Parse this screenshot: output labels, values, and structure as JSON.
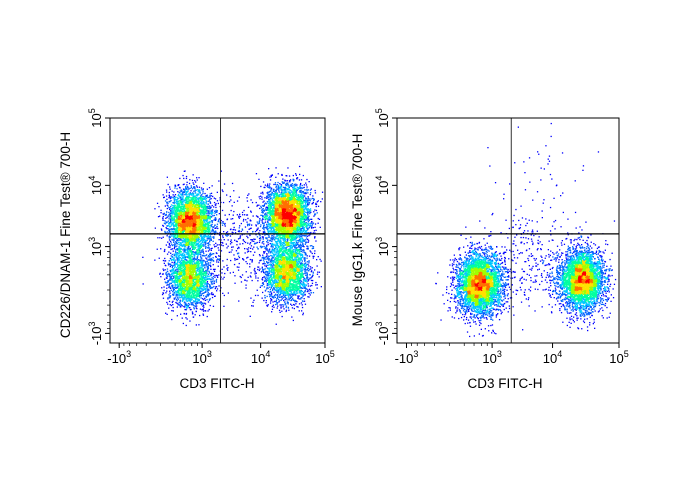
{
  "chart_data": [
    {
      "type": "scatter",
      "subtype": "flow-cytometry-density",
      "title": "",
      "xlabel": "CD3 FITC-H",
      "ylabel": "CD226/DNAM-1 Fine Test® 700-H",
      "x_scale": "biexponential",
      "y_scale": "biexponential",
      "xlim": [
        -1500,
        100000
      ],
      "ylim": [
        -1500,
        100000
      ],
      "x_ticks": [
        {
          "base": "-10",
          "exp": "3",
          "value": -1000
        },
        {
          "base": "10",
          "exp": "3",
          "value": 1000
        },
        {
          "base": "10",
          "exp": "4",
          "value": 10000
        },
        {
          "base": "10",
          "exp": "5",
          "value": 100000
        }
      ],
      "y_ticks": [
        {
          "base": "-10",
          "exp": "3",
          "value": -1000
        },
        {
          "base": "10",
          "exp": "3",
          "value": 1000
        },
        {
          "base": "10",
          "exp": "4",
          "value": 10000
        },
        {
          "base": "10",
          "exp": "5",
          "value": 100000
        }
      ],
      "quadrant_gate": {
        "x": 2200,
        "y": 1700
      },
      "populations": [
        {
          "x": 550,
          "y": 2800,
          "n": 3500
        },
        {
          "x": 550,
          "y": 150,
          "n": 2300
        },
        {
          "x": 26000,
          "y": 3500,
          "n": 3800
        },
        {
          "x": 26000,
          "y": 250,
          "n": 2600
        },
        {
          "x": 5000,
          "y": 1200,
          "n": 450
        }
      ],
      "grid": false,
      "legend": "none"
    },
    {
      "type": "scatter",
      "subtype": "flow-cytometry-density",
      "title": "",
      "xlabel": "CD3 FITC-H",
      "ylabel": "Mouse IgG1,k Fine Test® 700-H",
      "x_scale": "biexponential",
      "y_scale": "biexponential",
      "xlim": [
        -1500,
        100000
      ],
      "ylim": [
        -1500,
        100000
      ],
      "x_ticks": [
        {
          "base": "-10",
          "exp": "3",
          "value": -1000
        },
        {
          "base": "10",
          "exp": "3",
          "value": 1000
        },
        {
          "base": "10",
          "exp": "4",
          "value": 10000
        },
        {
          "base": "10",
          "exp": "5",
          "value": 100000
        }
      ],
      "y_ticks": [
        {
          "base": "-10",
          "exp": "3",
          "value": -1000
        },
        {
          "base": "10",
          "exp": "3",
          "value": 1000
        },
        {
          "base": "10",
          "exp": "4",
          "value": 10000
        },
        {
          "base": "10",
          "exp": "5",
          "value": 100000
        }
      ],
      "quadrant_gate": {
        "x": 2200,
        "y": 1700
      },
      "populations": [
        {
          "x": 550,
          "y": 60,
          "n": 4000
        },
        {
          "x": 28000,
          "y": 120,
          "n": 3800
        },
        {
          "x": 5000,
          "y": 600,
          "n": 300
        },
        {
          "x": 8000,
          "y": 12000,
          "n": 40
        }
      ],
      "grid": false,
      "legend": "none"
    }
  ],
  "palette": [
    "#0000ff",
    "#0060ff",
    "#00c8ff",
    "#00ffa0",
    "#a0ff00",
    "#ffe000",
    "#ff7000",
    "#ff0000"
  ]
}
